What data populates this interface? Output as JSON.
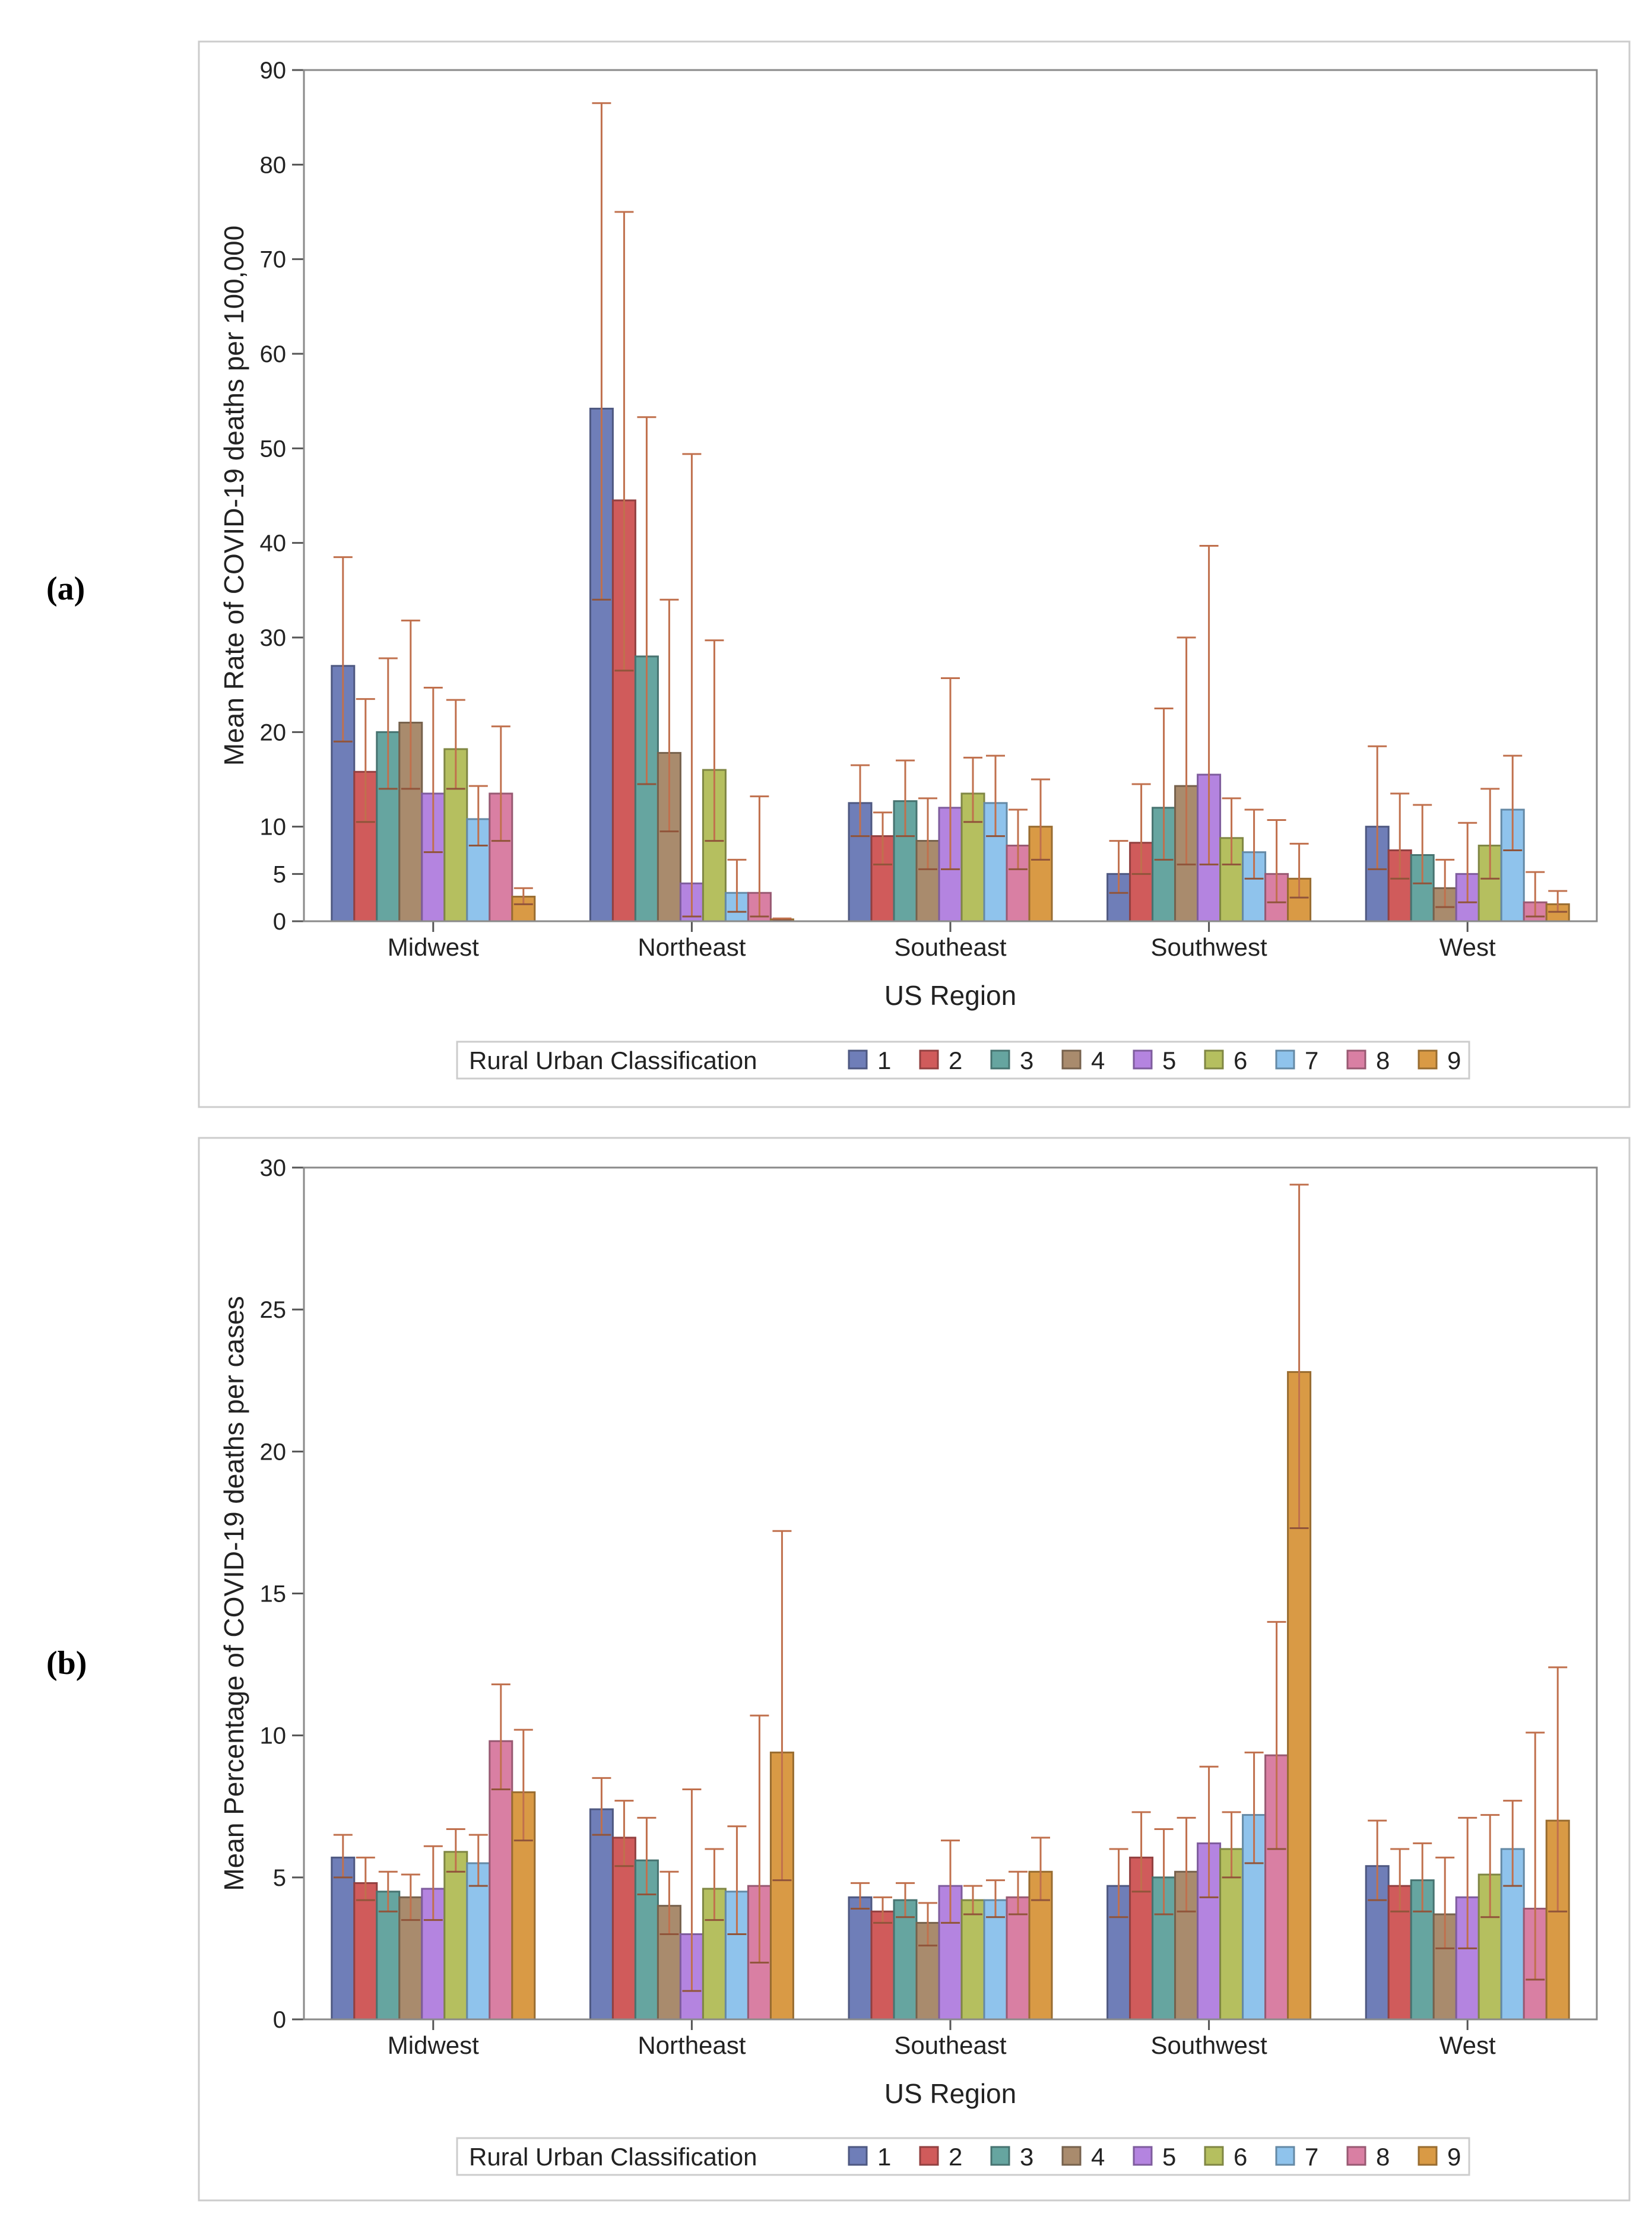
{
  "panel_labels": [
    "(a)",
    "(b)"
  ],
  "chart_data": [
    {
      "type": "bar",
      "panel": "(a)",
      "title": "",
      "xlabel": "US Region",
      "ylabel": "Mean Rate of COVID-19 deaths per 100,000",
      "ylim": [
        0,
        90
      ],
      "yticks": [
        0,
        5,
        10,
        20,
        30,
        40,
        50,
        60,
        70,
        80,
        90
      ],
      "categories": [
        "Midwest",
        "Northeast",
        "Southeast",
        "Southwest",
        "West"
      ],
      "legend": {
        "title": "Rural Urban Classification",
        "position": "bottom"
      },
      "series": [
        {
          "name": "1",
          "color": "#6f7eb8",
          "values": [
            27.0,
            54.2,
            12.5,
            5.0,
            10.0
          ],
          "lower": [
            19.0,
            34.0,
            9.0,
            3.0,
            5.5
          ],
          "upper": [
            38.5,
            86.5,
            16.5,
            8.5,
            18.5
          ]
        },
        {
          "name": "2",
          "color": "#d05b5b",
          "values": [
            15.8,
            44.5,
            9.0,
            8.3,
            7.5
          ],
          "lower": [
            10.5,
            26.5,
            6.0,
            5.0,
            4.5
          ],
          "upper": [
            23.5,
            75.0,
            11.5,
            14.5,
            13.5
          ]
        },
        {
          "name": "3",
          "color": "#66a5a0",
          "values": [
            20.0,
            28.0,
            12.7,
            12.0,
            7.0
          ],
          "lower": [
            14.0,
            14.5,
            9.0,
            6.5,
            4.0
          ],
          "upper": [
            27.8,
            53.3,
            17.0,
            22.5,
            12.3
          ]
        },
        {
          "name": "4",
          "color": "#a98b6d",
          "values": [
            21.0,
            17.8,
            8.5,
            14.3,
            3.5
          ],
          "lower": [
            14.0,
            9.5,
            5.5,
            6.0,
            1.5
          ],
          "upper": [
            31.8,
            34.0,
            13.0,
            30.0,
            6.5
          ]
        },
        {
          "name": "5",
          "color": "#b484e0",
          "values": [
            13.5,
            4.0,
            12.0,
            15.5,
            5.0
          ],
          "lower": [
            7.3,
            0.5,
            5.5,
            6.0,
            2.0
          ],
          "upper": [
            24.7,
            49.4,
            25.7,
            39.7,
            10.4
          ]
        },
        {
          "name": "6",
          "color": "#b5bf5f",
          "values": [
            18.2,
            16.0,
            13.5,
            8.8,
            8.0
          ],
          "lower": [
            14.0,
            8.5,
            10.5,
            6.0,
            4.5
          ],
          "upper": [
            23.4,
            29.7,
            17.3,
            13.0,
            14.0
          ]
        },
        {
          "name": "7",
          "color": "#8fc3ec",
          "values": [
            10.8,
            3.0,
            12.5,
            7.3,
            11.8
          ],
          "lower": [
            8.0,
            1.0,
            9.0,
            4.5,
            7.5
          ],
          "upper": [
            14.3,
            6.5,
            17.5,
            11.8,
            17.5
          ]
        },
        {
          "name": "8",
          "color": "#d97fa3",
          "values": [
            13.5,
            3.0,
            8.0,
            5.0,
            2.0
          ],
          "lower": [
            8.5,
            0.5,
            5.5,
            2.0,
            0.5
          ],
          "upper": [
            20.6,
            13.2,
            11.8,
            10.7,
            5.2
          ]
        },
        {
          "name": "9",
          "color": "#d99a45",
          "values": [
            2.6,
            0.2,
            10.0,
            4.5,
            1.8
          ],
          "lower": [
            1.8,
            0.1,
            6.5,
            2.5,
            1.0
          ],
          "upper": [
            3.5,
            0.3,
            15.0,
            8.2,
            3.2
          ]
        }
      ]
    },
    {
      "type": "bar",
      "panel": "(b)",
      "title": "",
      "xlabel": "US Region",
      "ylabel": "Mean Percentage of COVID-19 deaths per cases",
      "ylim": [
        0,
        30
      ],
      "yticks": [
        0,
        5,
        10,
        15,
        20,
        25,
        30
      ],
      "categories": [
        "Midwest",
        "Northeast",
        "Southeast",
        "Southwest",
        "West"
      ],
      "legend": {
        "title": "Rural Urban Classification",
        "position": "bottom"
      },
      "series": [
        {
          "name": "1",
          "color": "#6f7eb8",
          "values": [
            5.7,
            7.4,
            4.3,
            4.7,
            5.4
          ],
          "lower": [
            5.0,
            6.5,
            3.9,
            3.6,
            4.2
          ],
          "upper": [
            6.5,
            8.5,
            4.8,
            6.0,
            7.0
          ]
        },
        {
          "name": "2",
          "color": "#d05b5b",
          "values": [
            4.8,
            6.4,
            3.8,
            5.7,
            4.7
          ],
          "lower": [
            4.2,
            5.4,
            3.4,
            4.5,
            3.8
          ],
          "upper": [
            5.7,
            7.7,
            4.3,
            7.3,
            6.0
          ]
        },
        {
          "name": "3",
          "color": "#66a5a0",
          "values": [
            4.5,
            5.6,
            4.2,
            5.0,
            4.9
          ],
          "lower": [
            3.8,
            4.4,
            3.6,
            3.7,
            3.8
          ],
          "upper": [
            5.2,
            7.1,
            4.8,
            6.7,
            6.2
          ]
        },
        {
          "name": "4",
          "color": "#a98b6d",
          "values": [
            4.3,
            4.0,
            3.4,
            5.2,
            3.7
          ],
          "lower": [
            3.5,
            3.0,
            2.6,
            3.8,
            2.5
          ],
          "upper": [
            5.1,
            5.2,
            4.1,
            7.1,
            5.7
          ]
        },
        {
          "name": "5",
          "color": "#b484e0",
          "values": [
            4.6,
            3.0,
            4.7,
            6.2,
            4.3
          ],
          "lower": [
            3.5,
            1.0,
            3.4,
            4.3,
            2.5
          ],
          "upper": [
            6.1,
            8.1,
            6.3,
            8.9,
            7.1
          ]
        },
        {
          "name": "6",
          "color": "#b5bf5f",
          "values": [
            5.9,
            4.6,
            4.2,
            6.0,
            5.1
          ],
          "lower": [
            5.2,
            3.5,
            3.7,
            5.0,
            3.6
          ],
          "upper": [
            6.7,
            6.0,
            4.7,
            7.3,
            7.2
          ]
        },
        {
          "name": "7",
          "color": "#8fc3ec",
          "values": [
            5.5,
            4.5,
            4.2,
            7.2,
            6.0
          ],
          "lower": [
            4.7,
            3.0,
            3.6,
            5.5,
            4.7
          ],
          "upper": [
            6.5,
            6.8,
            4.9,
            9.4,
            7.7
          ]
        },
        {
          "name": "8",
          "color": "#d97fa3",
          "values": [
            9.8,
            4.7,
            4.3,
            9.3,
            3.9
          ],
          "lower": [
            8.1,
            2.0,
            3.7,
            6.0,
            1.4
          ],
          "upper": [
            11.8,
            10.7,
            5.2,
            14.0,
            10.1
          ]
        },
        {
          "name": "9",
          "color": "#d99a45",
          "values": [
            8.0,
            9.4,
            5.2,
            22.8,
            7.0
          ],
          "lower": [
            6.3,
            4.9,
            4.2,
            17.3,
            3.8
          ],
          "upper": [
            10.2,
            17.2,
            6.4,
            29.4,
            12.4
          ]
        }
      ]
    }
  ]
}
